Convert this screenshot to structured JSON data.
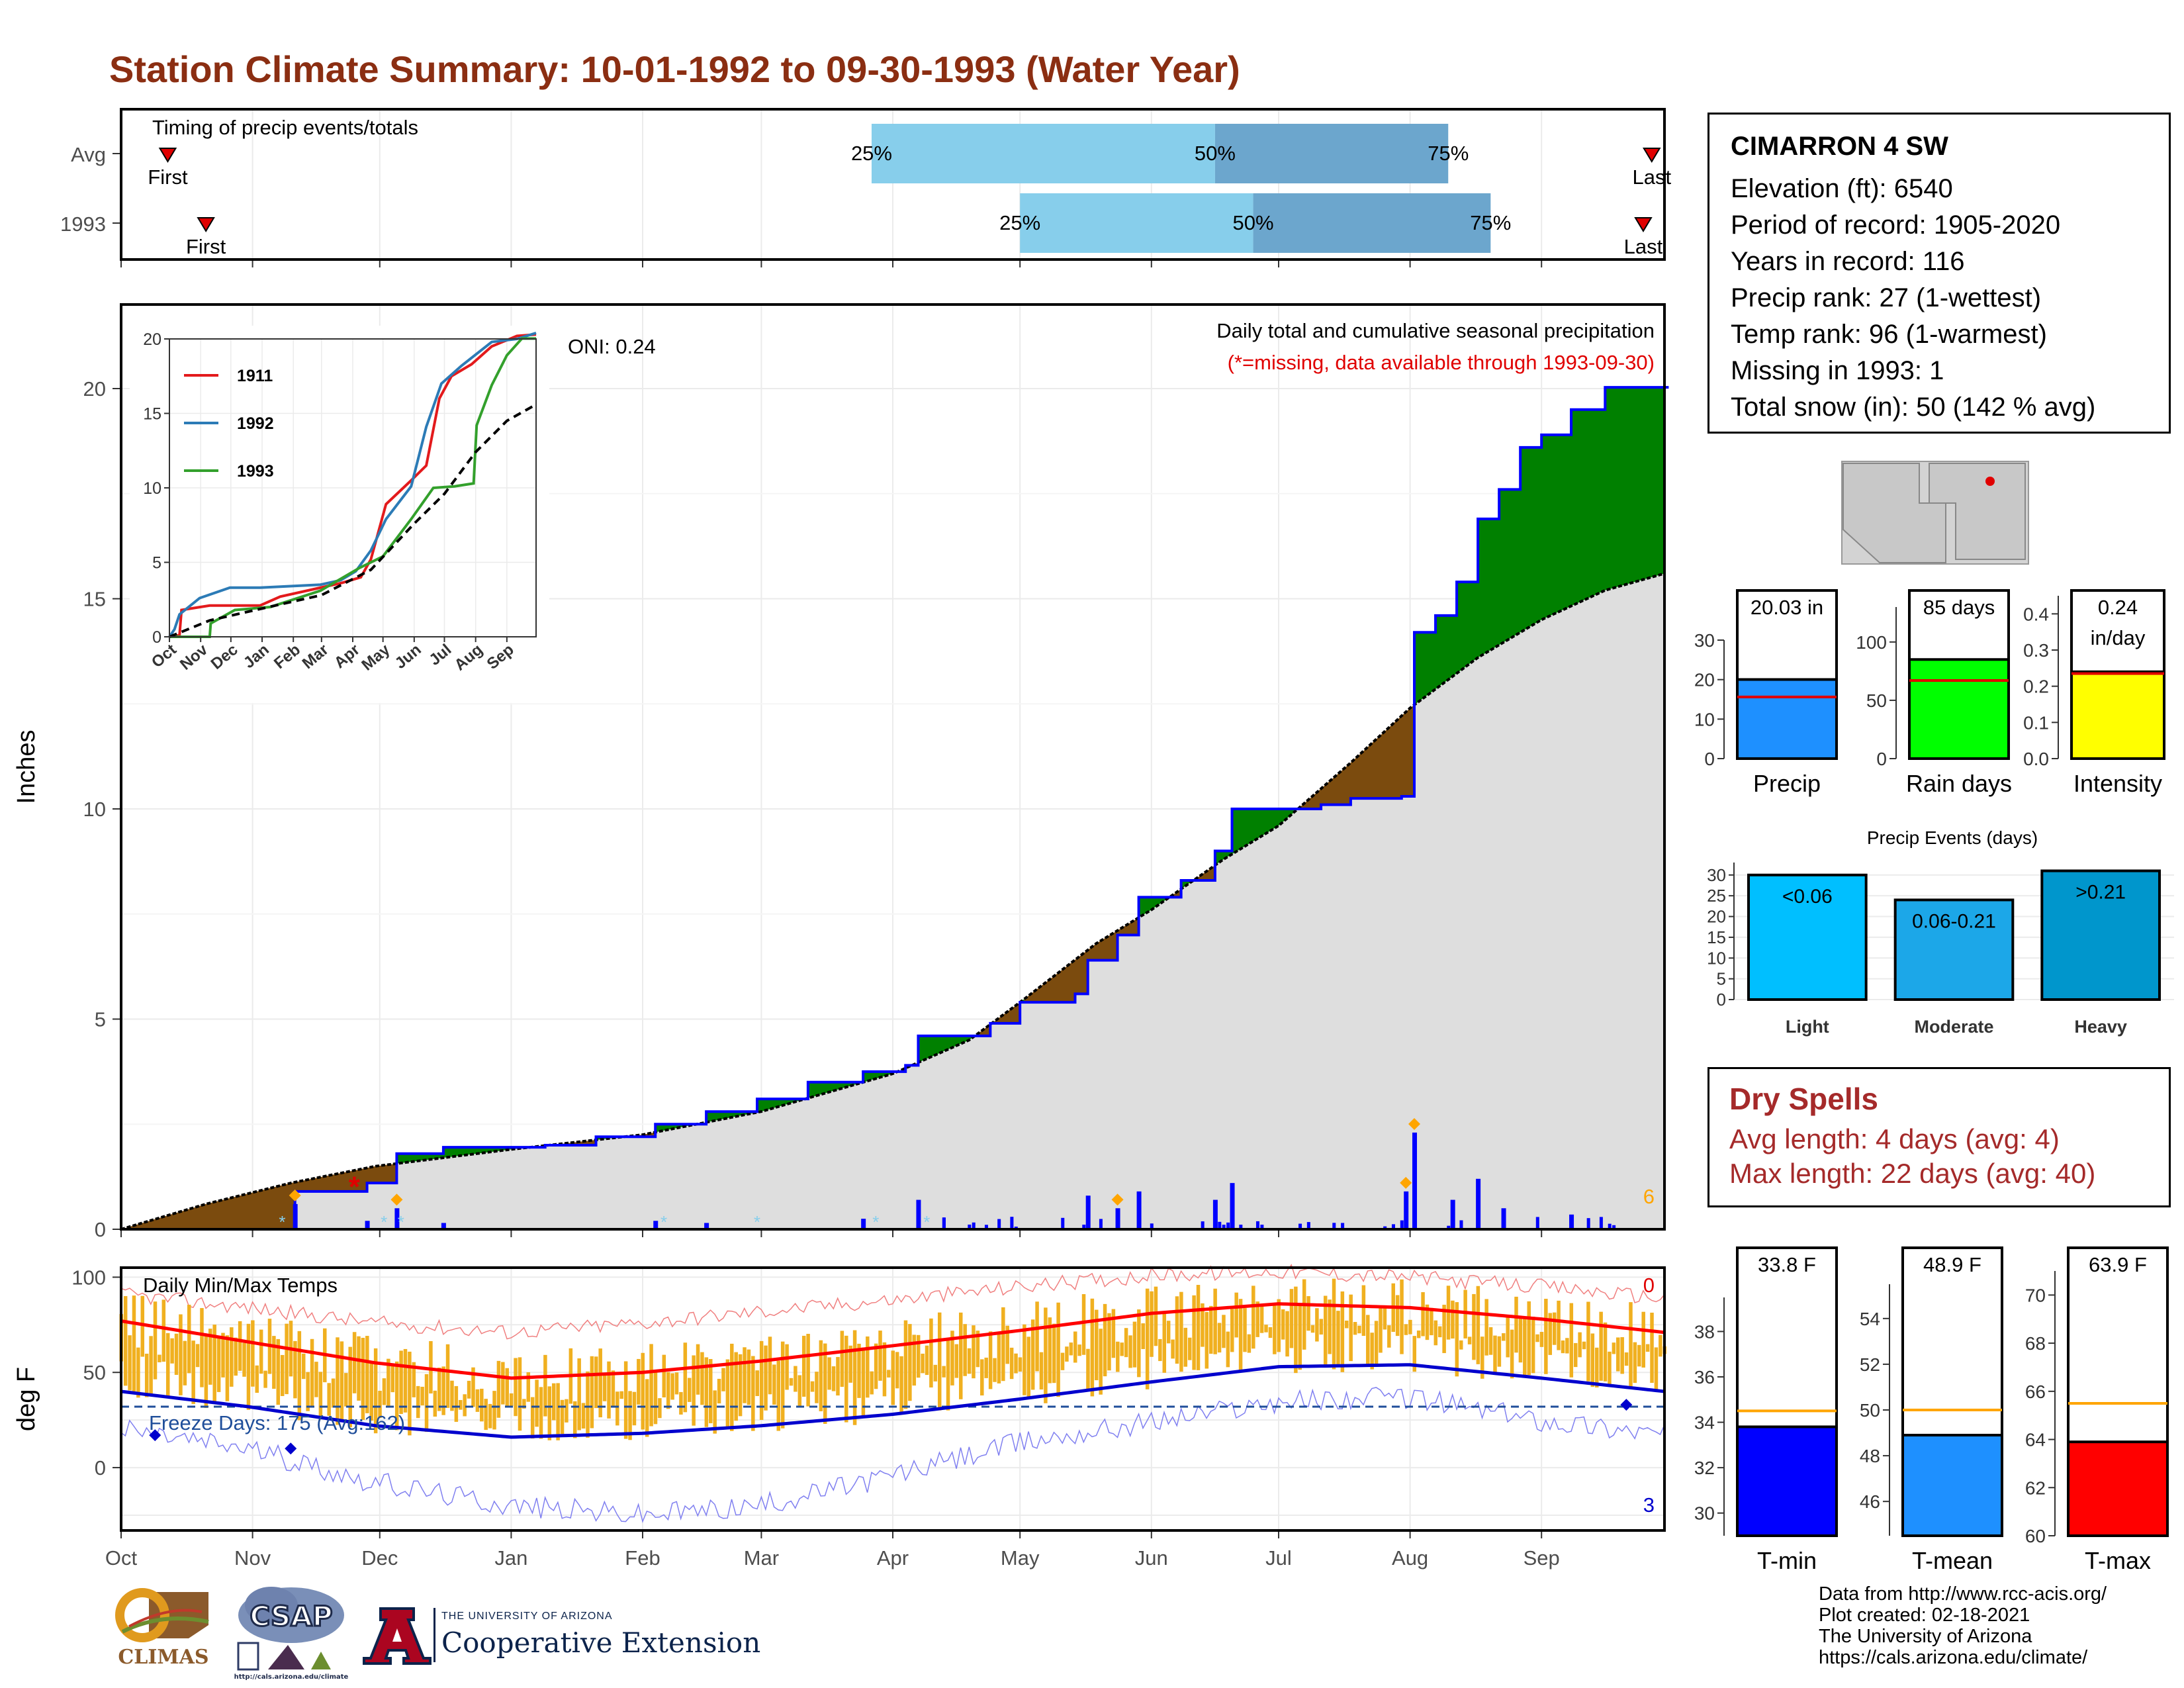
{
  "title": "Station Climate Summary: 10-01-1992 to 09-30-1993 (Water Year)",
  "colors": {
    "title": "#8B2E12",
    "dry_spells": "#A52A2A",
    "surplus": "#008000",
    "deficit": "#7B4B0E",
    "avg_fill": "#DEDEDE",
    "precip_bar": "#1E90FF",
    "rain_days_bar": "#00FF00",
    "intensity_bar": "#FFFF00",
    "light": "#00BFFF",
    "moderate": "#1CA7E8",
    "heavy": "#0096CC",
    "tmin": "#0000FF",
    "tmean": "#1E90FF",
    "tmax": "#FF0000",
    "temp_range": "#F0B020"
  },
  "station": {
    "name": "CIMARRON 4 SW",
    "lines": [
      "Elevation (ft): 6540",
      "Period of record: 1905-2020",
      "Years in record: 116",
      "Precip rank: 27 (1-wettest)",
      "Temp rank: 96 (1-warmest)",
      "Missing in 1993: 1",
      "Total snow (in): 50 (142 % avg)"
    ]
  },
  "dry_spells": {
    "title": "Dry Spells",
    "avg": "Avg length: 4 days (avg: 4)",
    "max": "Max length: 22 days (avg: 40)"
  },
  "credits": [
    "Data from http://www.rcc-acis.org/",
    "Plot created: 02-18-2021",
    "The University of Arizona",
    "https://cals.arizona.edu/climate/"
  ],
  "logos": {
    "climas": "CLIMAS",
    "csap": "CSAP",
    "csap_url": "http://cals.arizona.edu/climate",
    "ua_small": "THE UNIVERSITY OF ARIZONA",
    "ua_big": "Cooperative Extension"
  },
  "chart_data": [
    {
      "id": "timing",
      "type": "bar",
      "title": "Timing of precip events/totals",
      "rows": [
        {
          "label": "Avg",
          "first": "Oct 12",
          "p25": "Mar 27",
          "p50": "Jun 16",
          "p75": "Aug 10",
          "last": "Sep 27"
        },
        {
          "label": "1993",
          "first": "Oct 21",
          "p25": "May 1",
          "p50": "Jun 25",
          "p75": "Aug 20",
          "last": "Sep 25"
        }
      ],
      "labels": {
        "first": "First",
        "last": "Last",
        "p25": "25%",
        "p50": "50%",
        "p75": "75%"
      }
    },
    {
      "id": "cumulative",
      "type": "area",
      "title": "Daily total and cumulative seasonal precipitation",
      "subtitle": "(*=missing, data available through 1993-09-30)",
      "annotation": "ONI: 0.24",
      "ylabel": "Inches",
      "ylim": [
        0,
        22
      ],
      "yticks": [
        0,
        5,
        10,
        15,
        20
      ],
      "months": [
        "Oct",
        "Nov",
        "Dec",
        "Jan",
        "Feb",
        "Mar",
        "Apr",
        "May",
        "Jun",
        "Jul",
        "Aug",
        "Sep"
      ],
      "avg_cumulative": [
        {
          "day": 0,
          "value": 0
        },
        {
          "day": 20,
          "value": 0.6
        },
        {
          "day": 40,
          "value": 1.1
        },
        {
          "day": 60,
          "value": 1.5
        },
        {
          "day": 92,
          "value": 1.9
        },
        {
          "day": 123,
          "value": 2.25
        },
        {
          "day": 151,
          "value": 2.8
        },
        {
          "day": 182,
          "value": 3.7
        },
        {
          "day": 200,
          "value": 4.5
        },
        {
          "day": 212,
          "value": 5.4
        },
        {
          "day": 230,
          "value": 6.8
        },
        {
          "day": 243,
          "value": 7.6
        },
        {
          "day": 260,
          "value": 8.8
        },
        {
          "day": 273,
          "value": 9.6
        },
        {
          "day": 290,
          "value": 11.1
        },
        {
          "day": 304,
          "value": 12.4
        },
        {
          "day": 320,
          "value": 13.6
        },
        {
          "day": 335,
          "value": 14.5
        },
        {
          "day": 350,
          "value": 15.2
        },
        {
          "day": 364,
          "value": 15.6
        }
      ],
      "year_cumulative": [
        {
          "day": 0,
          "value": 0
        },
        {
          "day": 40,
          "value": 0
        },
        {
          "day": 41,
          "value": 0.9
        },
        {
          "day": 57,
          "value": 0.9
        },
        {
          "day": 58,
          "value": 1.1
        },
        {
          "day": 64,
          "value": 1.1
        },
        {
          "day": 65,
          "value": 1.8
        },
        {
          "day": 75,
          "value": 1.8
        },
        {
          "day": 76,
          "value": 1.95
        },
        {
          "day": 100,
          "value": 2.0
        },
        {
          "day": 112,
          "value": 2.2
        },
        {
          "day": 126,
          "value": 2.5
        },
        {
          "day": 138,
          "value": 2.8
        },
        {
          "day": 150,
          "value": 3.1
        },
        {
          "day": 162,
          "value": 3.5
        },
        {
          "day": 175,
          "value": 3.75
        },
        {
          "day": 185,
          "value": 3.9
        },
        {
          "day": 188,
          "value": 4.6
        },
        {
          "day": 205,
          "value": 4.9
        },
        {
          "day": 212,
          "value": 5.4
        },
        {
          "day": 225,
          "value": 5.6
        },
        {
          "day": 228,
          "value": 6.4
        },
        {
          "day": 235,
          "value": 7.0
        },
        {
          "day": 240,
          "value": 7.9
        },
        {
          "day": 250,
          "value": 8.3
        },
        {
          "day": 258,
          "value": 9.0
        },
        {
          "day": 262,
          "value": 10.0
        },
        {
          "day": 283,
          "value": 10.1
        },
        {
          "day": 290,
          "value": 10.25
        },
        {
          "day": 302,
          "value": 10.3
        },
        {
          "day": 305,
          "value": 14.2
        },
        {
          "day": 310,
          "value": 14.6
        },
        {
          "day": 315,
          "value": 15.4
        },
        {
          "day": 320,
          "value": 16.9
        },
        {
          "day": 325,
          "value": 17.6
        },
        {
          "day": 330,
          "value": 18.6
        },
        {
          "day": 335,
          "value": 18.9
        },
        {
          "day": 342,
          "value": 19.5
        },
        {
          "day": 350,
          "value": 20.03
        },
        {
          "day": 364,
          "value": 20.03
        }
      ],
      "daily_bars": [
        {
          "day": 41,
          "value": 0.6
        },
        {
          "day": 58,
          "value": 0.2
        },
        {
          "day": 65,
          "value": 0.5
        },
        {
          "day": 76,
          "value": 0.15
        },
        {
          "day": 126,
          "value": 0.2
        },
        {
          "day": 138,
          "value": 0.15
        },
        {
          "day": 175,
          "value": 0.25
        },
        {
          "day": 188,
          "value": 0.7
        },
        {
          "day": 228,
          "value": 0.8
        },
        {
          "day": 235,
          "value": 0.5
        },
        {
          "day": 240,
          "value": 0.9
        },
        {
          "day": 258,
          "value": 0.7
        },
        {
          "day": 262,
          "value": 1.1
        },
        {
          "day": 303,
          "value": 0.9
        },
        {
          "day": 305,
          "value": 2.3
        },
        {
          "day": 314,
          "value": 0.7
        },
        {
          "day": 320,
          "value": 1.2
        },
        {
          "day": 326,
          "value": 0.5
        },
        {
          "day": 342,
          "value": 0.35
        }
      ],
      "missing_marker": {
        "day": 55,
        "value": 1.0
      },
      "count_label": "6"
    },
    {
      "id": "inset",
      "type": "line",
      "ylim": [
        0,
        20
      ],
      "yticks": [
        0,
        5,
        10,
        15,
        20
      ],
      "months": [
        "Oct",
        "Nov",
        "Dec",
        "Jan",
        "Feb",
        "Mar",
        "Apr",
        "May",
        "Jun",
        "Jul",
        "Aug",
        "Sep"
      ],
      "series": [
        {
          "name": "1911",
          "color": "#E31A1C",
          "points": [
            [
              0,
              0
            ],
            [
              10,
              0.1
            ],
            [
              12,
              1.8
            ],
            [
              40,
              2.1
            ],
            [
              90,
              2.1
            ],
            [
              110,
              2.7
            ],
            [
              150,
              3.3
            ],
            [
              170,
              3.6
            ],
            [
              190,
              4.0
            ],
            [
              200,
              5.2
            ],
            [
              215,
              8.9
            ],
            [
              240,
              10.5
            ],
            [
              255,
              11.5
            ],
            [
              268,
              16.0
            ],
            [
              280,
              17.5
            ],
            [
              300,
              18.3
            ],
            [
              320,
              19.5
            ],
            [
              345,
              20.2
            ],
            [
              364,
              20.3
            ]
          ]
        },
        {
          "name": "1992",
          "color": "#2C7BB6",
          "points": [
            [
              0,
              0
            ],
            [
              5,
              0.5
            ],
            [
              10,
              1.5
            ],
            [
              30,
              2.6
            ],
            [
              60,
              3.3
            ],
            [
              90,
              3.3
            ],
            [
              120,
              3.4
            ],
            [
              150,
              3.5
            ],
            [
              170,
              3.8
            ],
            [
              185,
              4.4
            ],
            [
              200,
              5.8
            ],
            [
              215,
              7.9
            ],
            [
              240,
              10.1
            ],
            [
              255,
              14.1
            ],
            [
              270,
              17.0
            ],
            [
              290,
              18.2
            ],
            [
              320,
              19.8
            ],
            [
              345,
              20.0
            ],
            [
              364,
              20.4
            ]
          ]
        },
        {
          "name": "1993",
          "color": "#33A02C",
          "points": [
            [
              0,
              0
            ],
            [
              40,
              0
            ],
            [
              41,
              0.9
            ],
            [
              65,
              1.8
            ],
            [
              100,
              2.0
            ],
            [
              150,
              3.1
            ],
            [
              188,
              4.6
            ],
            [
              212,
              5.4
            ],
            [
              240,
              7.9
            ],
            [
              262,
              10.0
            ],
            [
              283,
              10.1
            ],
            [
              302,
              10.3
            ],
            [
              305,
              14.2
            ],
            [
              320,
              16.9
            ],
            [
              335,
              18.9
            ],
            [
              350,
              20.03
            ],
            [
              364,
              20.03
            ]
          ]
        },
        {
          "name": "Avg",
          "color": "#000000",
          "dash": true,
          "points": [
            [
              0,
              0
            ],
            [
              40,
              1.1
            ],
            [
              92,
              1.9
            ],
            [
              151,
              2.8
            ],
            [
              200,
              4.5
            ],
            [
              243,
              7.6
            ],
            [
              273,
              9.6
            ],
            [
              304,
              12.4
            ],
            [
              335,
              14.5
            ],
            [
              364,
              15.6
            ]
          ]
        }
      ]
    },
    {
      "id": "temps",
      "type": "line",
      "title": "Daily Min/Max Temps",
      "annotation": "Freeze Days: 175 (Avg:162)",
      "ylabel": "deg F",
      "ylim": [
        -33,
        105
      ],
      "yticks": [
        0,
        50,
        100
      ],
      "months": [
        "Oct",
        "Nov",
        "Dec",
        "Jan",
        "Feb",
        "Mar",
        "Apr",
        "May",
        "Jun",
        "Jul",
        "Aug",
        "Sep"
      ],
      "avg_max": [
        [
          0,
          77
        ],
        [
          30,
          66
        ],
        [
          60,
          55
        ],
        [
          92,
          47
        ],
        [
          123,
          50
        ],
        [
          151,
          56
        ],
        [
          182,
          64
        ],
        [
          212,
          72
        ],
        [
          243,
          81
        ],
        [
          273,
          86
        ],
        [
          304,
          84
        ],
        [
          335,
          78
        ],
        [
          364,
          71
        ]
      ],
      "avg_min": [
        [
          0,
          40
        ],
        [
          30,
          32
        ],
        [
          60,
          22
        ],
        [
          92,
          16
        ],
        [
          123,
          18
        ],
        [
          151,
          22
        ],
        [
          182,
          28
        ],
        [
          212,
          36
        ],
        [
          243,
          45
        ],
        [
          273,
          53
        ],
        [
          304,
          54
        ],
        [
          335,
          47
        ],
        [
          364,
          40
        ]
      ],
      "record_max": [
        [
          0,
          91
        ],
        [
          30,
          84
        ],
        [
          60,
          76
        ],
        [
          92,
          71
        ],
        [
          123,
          76
        ],
        [
          151,
          82
        ],
        [
          182,
          88
        ],
        [
          212,
          95
        ],
        [
          243,
          101
        ],
        [
          273,
          103
        ],
        [
          304,
          100
        ],
        [
          335,
          95
        ],
        [
          364,
          89
        ]
      ],
      "record_min": [
        [
          0,
          20
        ],
        [
          30,
          10
        ],
        [
          60,
          -8
        ],
        [
          92,
          -20
        ],
        [
          123,
          -25
        ],
        [
          151,
          -20
        ],
        [
          182,
          -4
        ],
        [
          212,
          13
        ],
        [
          243,
          24
        ],
        [
          273,
          35
        ],
        [
          304,
          37
        ],
        [
          335,
          25
        ],
        [
          364,
          18
        ]
      ],
      "freeze_line": 32,
      "record_high_count": "0",
      "record_low_count": "3"
    },
    {
      "id": "precip-total",
      "type": "bar",
      "title": "Precip",
      "value_label": "20.03 in",
      "value": 20.03,
      "avg": 15.6,
      "ylim": [
        0,
        30
      ],
      "yticks": [
        0,
        10,
        20,
        30
      ]
    },
    {
      "id": "rain-days",
      "type": "bar",
      "title": "Rain days",
      "value_label": "85 days",
      "value": 85,
      "avg": 67,
      "ylim": [
        0,
        130
      ],
      "yticks": [
        0,
        50,
        100
      ]
    },
    {
      "id": "intensity",
      "type": "bar",
      "title": "Intensity",
      "value_label": "0.24",
      "value_label2": "in/day",
      "value": 0.24,
      "avg": 0.235,
      "ylim": [
        0,
        0.45
      ],
      "yticks": [
        0.0,
        0.1,
        0.2,
        0.3,
        0.4
      ],
      "ytick_labels": [
        "0.0",
        "0.1",
        "0.2",
        "0.3",
        "0.4"
      ]
    },
    {
      "id": "events",
      "type": "bar",
      "title": "Precip Events (days)",
      "categories": [
        "Light",
        "Moderate",
        "Heavy"
      ],
      "bar_labels": [
        "<0.06",
        "0.06-0.21",
        ">0.21"
      ],
      "values": [
        30,
        24,
        31
      ],
      "ylim": [
        0,
        33
      ],
      "yticks": [
        0,
        5,
        10,
        15,
        20,
        25,
        30
      ]
    },
    {
      "id": "tmin",
      "type": "bar",
      "title": "T-min",
      "value_label": "33.8 F",
      "value": 33.8,
      "avg": 34.5,
      "ylim": [
        29,
        39.5
      ],
      "yticks": [
        30,
        32,
        34,
        36,
        38
      ]
    },
    {
      "id": "tmean",
      "type": "bar",
      "title": "T-mean",
      "value_label": "48.9 F",
      "value": 48.9,
      "avg": 50.0,
      "ylim": [
        44.5,
        55.5
      ],
      "yticks": [
        46,
        48,
        50,
        52,
        54
      ]
    },
    {
      "id": "tmax",
      "type": "bar",
      "title": "T-max",
      "value_label": "63.9 F",
      "value": 63.9,
      "avg": 65.5,
      "ylim": [
        60,
        71
      ],
      "yticks": [
        60,
        62,
        64,
        66,
        68,
        70
      ]
    }
  ]
}
